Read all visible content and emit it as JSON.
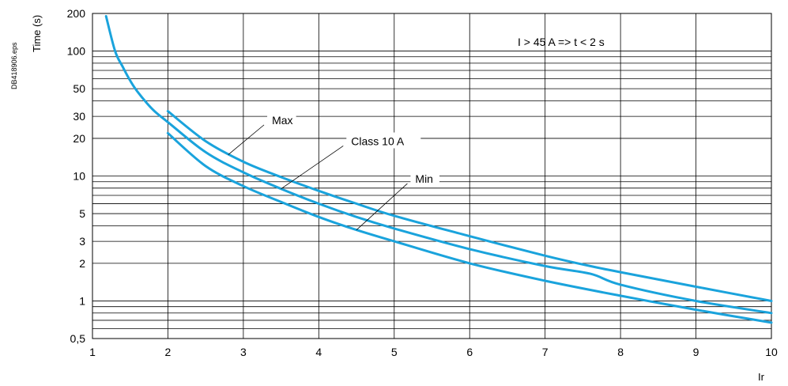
{
  "figure_id": "DB418906.eps",
  "chart_data": {
    "type": "line",
    "xlabel": "Ir",
    "ylabel": "Time (s)",
    "xlim": [
      1,
      10
    ],
    "ylim": [
      0.5,
      200
    ],
    "yscale": "log",
    "grid": true,
    "xticks": [
      1,
      2,
      3,
      4,
      5,
      6,
      7,
      8,
      9,
      10
    ],
    "xtick_labels": [
      "1",
      "2",
      "3",
      "4",
      "5",
      "6",
      "7",
      "8",
      "9",
      "10"
    ],
    "yticks": [
      0.5,
      1,
      2,
      3,
      5,
      10,
      20,
      30,
      50,
      100,
      200
    ],
    "ytick_labels": [
      "0,5",
      "1",
      "2",
      "3",
      "5",
      "10",
      "20",
      "30",
      "50",
      "100",
      "200"
    ],
    "ygrid": [
      0.5,
      0.6,
      0.7,
      0.8,
      0.9,
      1,
      2,
      3,
      4,
      5,
      6,
      7,
      8,
      9,
      10,
      20,
      30,
      40,
      50,
      60,
      70,
      80,
      90,
      100,
      200
    ],
    "line_color": "#1aa3dc",
    "annotation": "I > 45 A => t < 2 s",
    "series": [
      {
        "name": "Max",
        "x": [
          2,
          2.5,
          3,
          3.5,
          4,
          4.5,
          5,
          6,
          7,
          7.6,
          8,
          9,
          10
        ],
        "y": [
          33,
          19,
          13,
          9.8,
          7.6,
          6.0,
          4.8,
          3.3,
          2.3,
          1.9,
          1.7,
          1.3,
          1.0
        ]
      },
      {
        "name": "Class 10 A",
        "x": [
          1.18,
          1.3,
          1.4,
          1.5,
          1.6,
          1.8,
          2,
          2.5,
          3,
          3.5,
          4,
          4.5,
          5,
          6,
          7,
          7.6,
          8,
          9,
          10
        ],
        "y": [
          190,
          100,
          75,
          58,
          47,
          34,
          27,
          15.5,
          10.7,
          7.9,
          6.0,
          4.7,
          3.8,
          2.6,
          1.9,
          1.65,
          1.35,
          1.0,
          0.8
        ]
      },
      {
        "name": "Min",
        "x": [
          2,
          2.5,
          3,
          3.5,
          4,
          4.5,
          5,
          6,
          7,
          8,
          9,
          10
        ],
        "y": [
          22,
          12,
          8.3,
          6.2,
          4.7,
          3.7,
          3.0,
          2.0,
          1.45,
          1.1,
          0.85,
          0.67
        ]
      }
    ],
    "labels": [
      {
        "series": "Max",
        "text": "Max",
        "x": 3.4,
        "y": 28,
        "anchor_x": 2.8,
        "anchor_y": 14.8
      },
      {
        "series": "Class 10 A",
        "text": "Class 10 A",
        "x": 4.45,
        "y": 19,
        "anchor_x": 3.5,
        "anchor_y": 7.9
      },
      {
        "series": "Min",
        "text": "Min",
        "x": 5.3,
        "y": 9.5,
        "anchor_x": 4.5,
        "anchor_y": 3.7
      }
    ]
  }
}
